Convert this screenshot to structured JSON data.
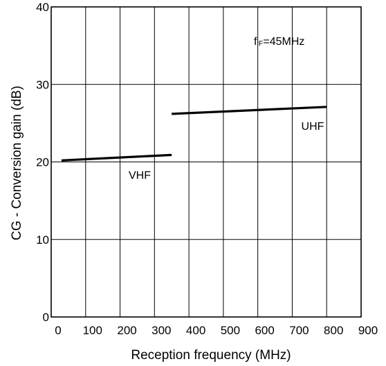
{
  "chart_data": {
    "type": "line",
    "title": "",
    "xlabel": "Reception frequency   (MHz)",
    "ylabel": "CG - Conversion gain (dB)",
    "xlim": [
      0,
      900
    ],
    "ylim": [
      0,
      40
    ],
    "x_ticks": [
      0,
      100,
      200,
      300,
      400,
      500,
      600,
      700,
      800,
      900
    ],
    "y_ticks": [
      0,
      10,
      20,
      30,
      40
    ],
    "grid": {
      "vertical": true,
      "horizontal": true
    },
    "series": [
      {
        "name": "VHF",
        "x": [
          30,
          350
        ],
        "y": [
          20.2,
          20.9
        ]
      },
      {
        "name": "UHF",
        "x": [
          350,
          800
        ],
        "y": [
          26.2,
          27.1
        ]
      }
    ],
    "annotations": {
      "condition_main": "f",
      "condition_sub": "IF",
      "condition_tail": "=45MHz"
    },
    "colors": {
      "line": "#000000",
      "grid": "#000000",
      "background": "#ffffff"
    }
  }
}
